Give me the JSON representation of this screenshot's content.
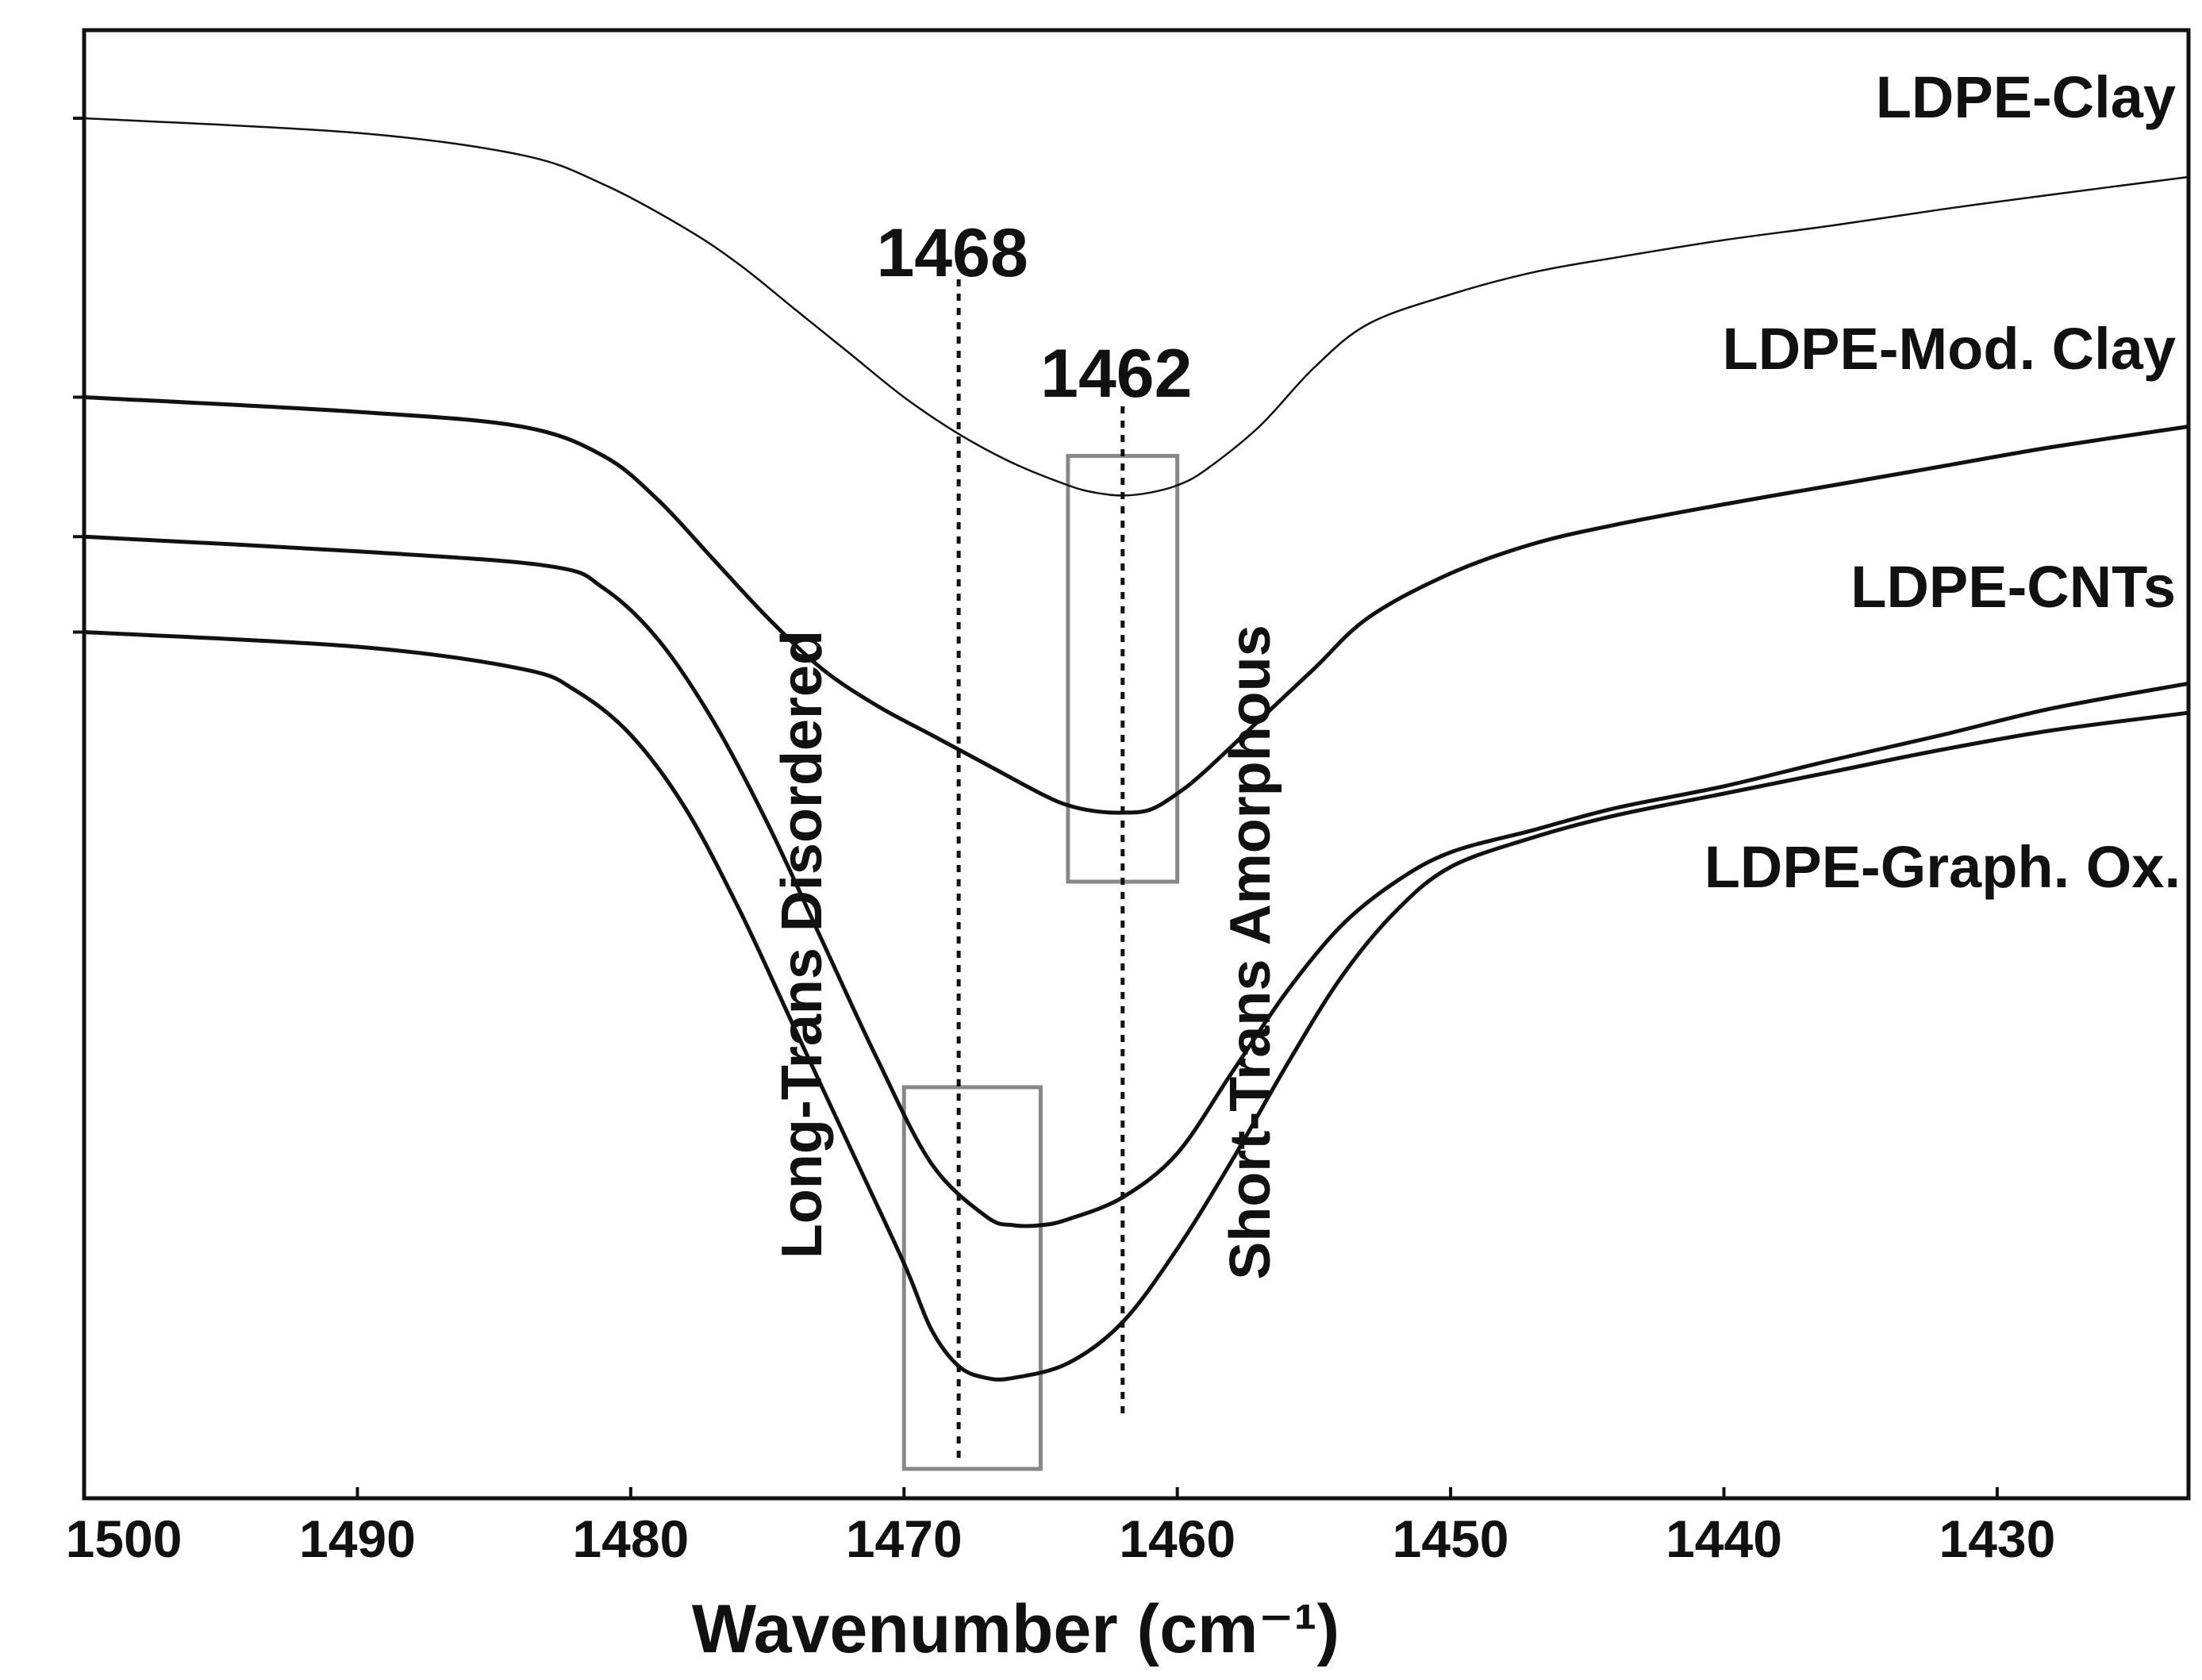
{
  "chart_data": {
    "type": "line",
    "title": "",
    "xlabel": "Wavenumber (cm⁻¹)",
    "ylabel": "",
    "xlim": [
      1500,
      1423
    ],
    "ylim": [
      0,
      1
    ],
    "x_reversed": true,
    "grid": false,
    "x_ticks": [
      1500,
      1490,
      1480,
      1470,
      1460,
      1450,
      1440,
      1430
    ],
    "series": [
      {
        "name": "LDPE-Clay",
        "label": "LDPE-Clay",
        "x": [
          1500,
          1490,
          1484,
          1481,
          1478,
          1476,
          1474,
          1472,
          1470,
          1468,
          1466,
          1464,
          1463,
          1462,
          1461,
          1460,
          1459,
          1457,
          1455,
          1453,
          1450,
          1447,
          1444,
          1440,
          1436,
          1432,
          1428,
          1423
        ],
        "y": [
          0.94,
          0.93,
          0.915,
          0.895,
          0.865,
          0.84,
          0.81,
          0.78,
          0.75,
          0.725,
          0.705,
          0.69,
          0.685,
          0.683,
          0.685,
          0.69,
          0.7,
          0.73,
          0.77,
          0.8,
          0.82,
          0.835,
          0.845,
          0.857,
          0.867,
          0.878,
          0.888,
          0.9
        ]
      },
      {
        "name": "LDPE-Mod. Clay",
        "label": "LDPE-Mod. Clay",
        "x": [
          1500,
          1490,
          1484,
          1481,
          1479,
          1477,
          1475,
          1473,
          1471,
          1469,
          1467,
          1465,
          1464,
          1463,
          1462,
          1461,
          1460,
          1459,
          1457,
          1455,
          1453,
          1450,
          1447,
          1444,
          1440,
          1436,
          1432,
          1428,
          1423
        ],
        "y": [
          0.75,
          0.74,
          0.73,
          0.71,
          0.68,
          0.64,
          0.6,
          0.565,
          0.54,
          0.52,
          0.5,
          0.48,
          0.472,
          0.468,
          0.467,
          0.469,
          0.48,
          0.495,
          0.53,
          0.565,
          0.6,
          0.63,
          0.65,
          0.663,
          0.677,
          0.69,
          0.703,
          0.716,
          0.73
        ]
      },
      {
        "name": "LDPE-CNTs",
        "label": "LDPE-CNTs",
        "x": [
          1500,
          1490,
          1483,
          1481,
          1479,
          1477,
          1475,
          1473,
          1471,
          1469,
          1467,
          1466,
          1465,
          1464,
          1462,
          1460,
          1458,
          1456,
          1454,
          1452,
          1450,
          1447,
          1444,
          1440,
          1436,
          1432,
          1428,
          1423
        ],
        "y": [
          0.655,
          0.645,
          0.635,
          0.62,
          0.585,
          0.53,
          0.46,
          0.38,
          0.3,
          0.228,
          0.192,
          0.186,
          0.186,
          0.19,
          0.205,
          0.235,
          0.29,
          0.345,
          0.39,
          0.42,
          0.44,
          0.455,
          0.47,
          0.485,
          0.503,
          0.52,
          0.538,
          0.555
        ]
      },
      {
        "name": "LDPE-Graph. Ox.",
        "label": "LDPE-Graph. Ox.",
        "x": [
          1500,
          1490,
          1484,
          1482,
          1480,
          1478,
          1476,
          1474,
          1472,
          1470,
          1469,
          1468,
          1467,
          1466,
          1464,
          1462,
          1460,
          1458,
          1456,
          1454,
          1452,
          1450,
          1447,
          1444,
          1440,
          1436,
          1432,
          1428,
          1423
        ],
        "y": [
          0.59,
          0.58,
          0.565,
          0.55,
          0.52,
          0.47,
          0.4,
          0.32,
          0.24,
          0.16,
          0.115,
          0.09,
          0.082,
          0.082,
          0.092,
          0.12,
          0.17,
          0.23,
          0.295,
          0.355,
          0.4,
          0.43,
          0.45,
          0.465,
          0.48,
          0.495,
          0.51,
          0.523,
          0.535
        ]
      }
    ],
    "reference_lines": [
      {
        "x": 1468,
        "label": "1468",
        "style": "dotted"
      },
      {
        "x": 1462,
        "label": "1462",
        "style": "dotted"
      }
    ],
    "annotations": [
      {
        "text": "Long-Trans Disordered",
        "x": 1472,
        "orientation": "vertical"
      },
      {
        "text": "Short-Trans Amorphous",
        "x": 1458,
        "orientation": "vertical"
      }
    ],
    "highlight_boxes": [
      {
        "x_from": 1464,
        "x_to": 1460,
        "y_from": 0.42,
        "y_to": 0.71
      },
      {
        "x_from": 1470,
        "x_to": 1465,
        "y_from": 0.02,
        "y_to": 0.28
      }
    ]
  }
}
